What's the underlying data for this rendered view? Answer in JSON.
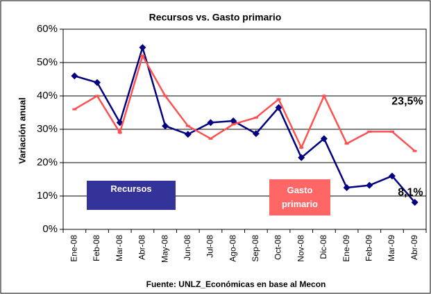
{
  "chart_data": {
    "type": "line",
    "title": "Recursos vs. Gasto primario",
    "y_label": "Variación anual",
    "source": "Fuente: UNLZ_Económicas en base al Mecon",
    "categories": [
      "Ene-08",
      "Feb-08",
      "Mar-08",
      "Abr-08",
      "May-08",
      "Jun-08",
      "Jul-08",
      "Ago-08",
      "Sep-08",
      "Oct-08",
      "Nov-08",
      "Dic-08",
      "Ene-09",
      "Feb-09",
      "Mar-09",
      "Abr-09"
    ],
    "series": [
      {
        "name": "Recursos",
        "color": "#000080",
        "marker": "diamond",
        "values": [
          46,
          44,
          32,
          54.5,
          31,
          28.5,
          32,
          32.5,
          28.7,
          36.5,
          21.5,
          27.2,
          12.5,
          13.2,
          16,
          8.1
        ],
        "value_labels": [
          null,
          null,
          null,
          null,
          null,
          null,
          null,
          null,
          null,
          null,
          null,
          null,
          null,
          null,
          null,
          "8,1%"
        ]
      },
      {
        "name": "Gasto primario",
        "color": "#ff5050",
        "marker": "dash",
        "values": [
          36,
          40,
          29,
          52,
          40,
          31,
          27.2,
          31.5,
          33.5,
          39,
          24.5,
          40,
          25.7,
          29.3,
          29.3,
          23.5
        ],
        "value_labels": [
          null,
          null,
          null,
          null,
          null,
          null,
          null,
          null,
          null,
          null,
          null,
          null,
          null,
          null,
          null,
          "23,5%"
        ]
      }
    ],
    "ylim": [
      0,
      60
    ],
    "yticks": [
      {
        "value": 0,
        "label": "0%"
      },
      {
        "value": 10,
        "label": "10%"
      },
      {
        "value": 20,
        "label": "20%"
      },
      {
        "value": 30,
        "label": "30%"
      },
      {
        "value": 40,
        "label": "40%"
      },
      {
        "value": 50,
        "label": "50%"
      },
      {
        "value": 60,
        "label": "60%"
      }
    ],
    "grid": true
  }
}
